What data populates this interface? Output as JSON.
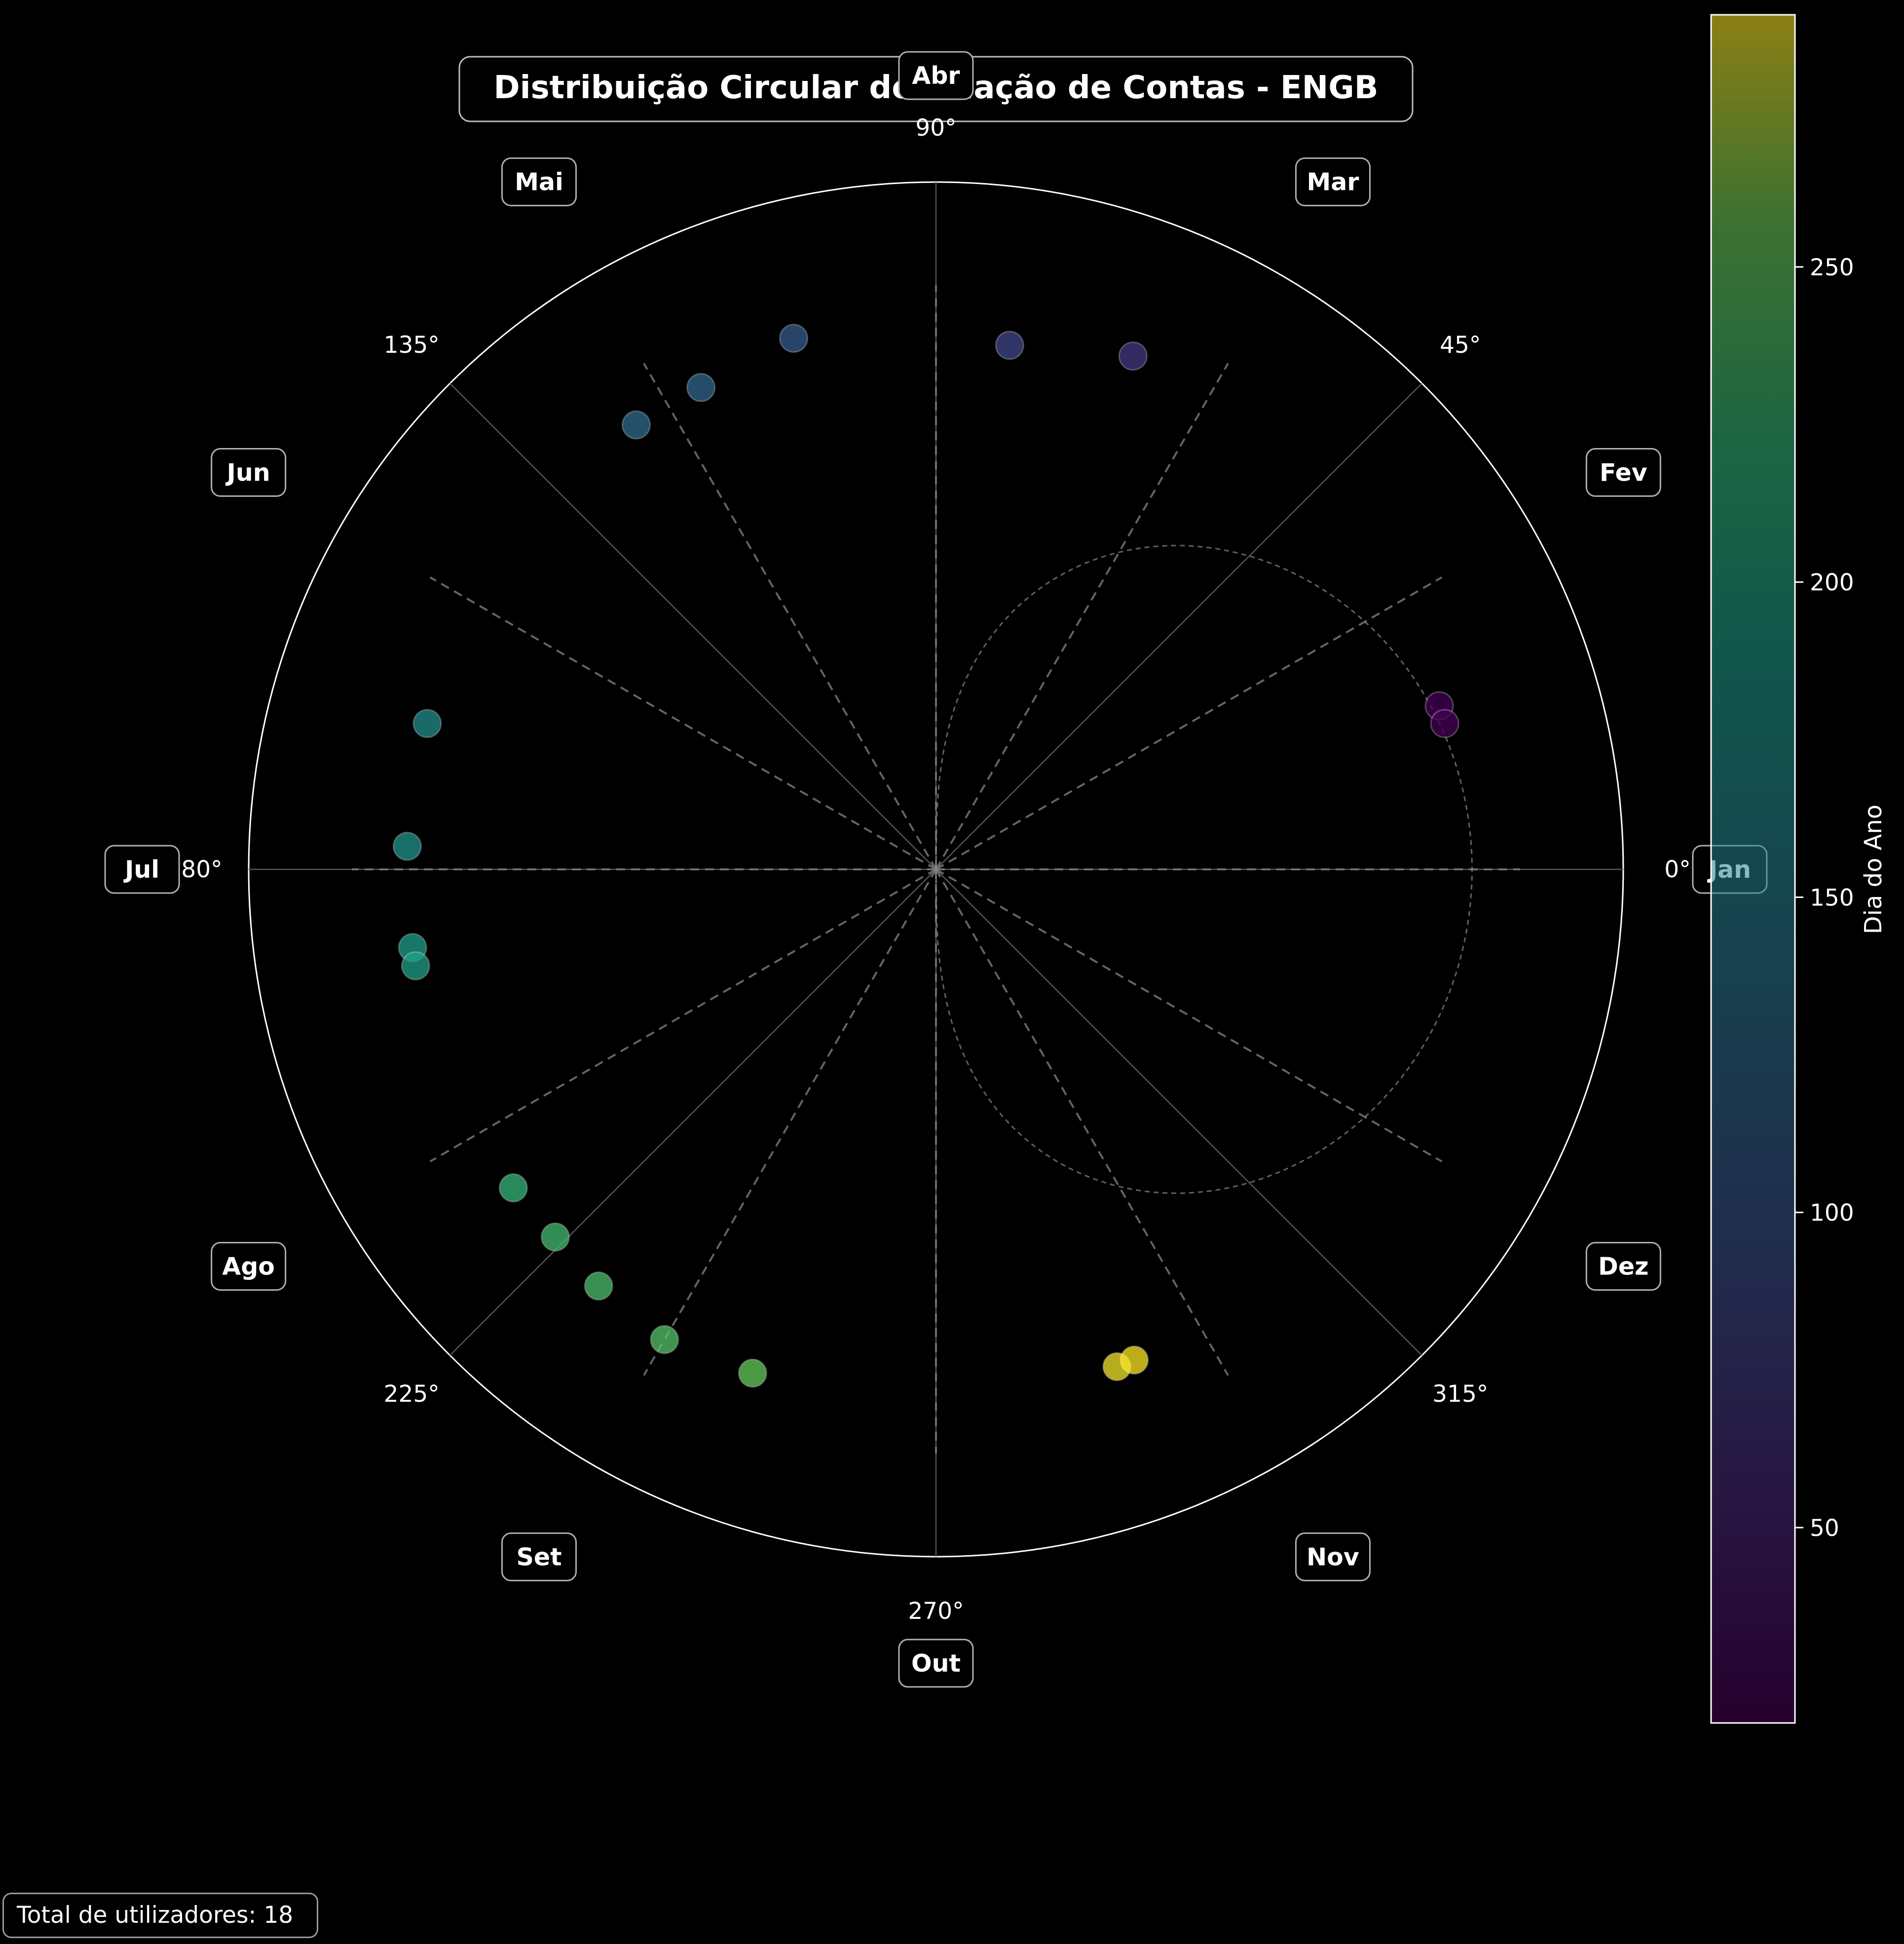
{
  "chart_data": {
    "type": "scatter",
    "projection": "polar",
    "title": "Distribuição Circular de Criação de Contas - ENGB",
    "angle_ticks": [
      {
        "deg": 0,
        "label": "0°"
      },
      {
        "deg": 45,
        "label": "45°"
      },
      {
        "deg": 90,
        "label": "90°"
      },
      {
        "deg": 135,
        "label": "135°"
      },
      {
        "deg": 180,
        "label": "180°"
      },
      {
        "deg": 225,
        "label": "225°"
      },
      {
        "deg": 270,
        "label": "270°"
      },
      {
        "deg": 315,
        "label": "315°"
      }
    ],
    "months": [
      {
        "label": "Jan",
        "deg": 0
      },
      {
        "label": "Fev",
        "deg": 30
      },
      {
        "label": "Mar",
        "deg": 60
      },
      {
        "label": "Abr",
        "deg": 90
      },
      {
        "label": "Mai",
        "deg": 120
      },
      {
        "label": "Jun",
        "deg": 150
      },
      {
        "label": "Jul",
        "deg": 180
      },
      {
        "label": "Ago",
        "deg": 210
      },
      {
        "label": "Set",
        "deg": 240
      },
      {
        "label": "Out",
        "deg": 270
      },
      {
        "label": "Nov",
        "deg": 300
      },
      {
        "label": "Dez",
        "deg": 330
      }
    ],
    "points": [
      {
        "theta": 18.0,
        "r": 0.77,
        "day": 19
      },
      {
        "theta": 16.0,
        "r": 0.77,
        "day": 20
      },
      {
        "theta": 69.0,
        "r": 0.8,
        "day": 70
      },
      {
        "theta": 82.0,
        "r": 0.77,
        "day": 85
      },
      {
        "theta": 105.0,
        "r": 0.8,
        "day": 106
      },
      {
        "theta": 116.0,
        "r": 0.78,
        "day": 120
      },
      {
        "theta": 124.0,
        "r": 0.78,
        "day": 126
      },
      {
        "theta": 164.0,
        "r": 0.77,
        "day": 166
      },
      {
        "theta": 177.5,
        "r": 0.77,
        "day": 178
      },
      {
        "theta": 188.5,
        "r": 0.77,
        "day": 190
      },
      {
        "theta": 190.5,
        "r": 0.77,
        "day": 193
      },
      {
        "theta": 217.0,
        "r": 0.77,
        "day": 223
      },
      {
        "theta": 224.0,
        "r": 0.77,
        "day": 230
      },
      {
        "theta": 231.0,
        "r": 0.78,
        "day": 236
      },
      {
        "theta": 240.0,
        "r": 0.79,
        "day": 242
      },
      {
        "theta": 250.0,
        "r": 0.78,
        "day": 251
      },
      {
        "theta": 290.0,
        "r": 0.77,
        "day": 288
      },
      {
        "theta": 292.0,
        "r": 0.77,
        "day": 290
      }
    ],
    "density_curve_r_max": 0.78,
    "rlim": [
      0,
      1
    ],
    "grid": true,
    "colorbar": {
      "label": "Dia do Ano",
      "colormap": "viridis",
      "vmin": 19,
      "vmax": 290,
      "ticks": [
        50,
        100,
        150,
        200,
        250
      ]
    }
  },
  "footer": {
    "total_users": "Total de utilizadores: 18"
  },
  "colors": {
    "background": "#000000",
    "text": "#ffffff",
    "grid_solid": "#555555",
    "grid_dashed": "#8a8a8a",
    "label_border": "#b0b0b0"
  }
}
